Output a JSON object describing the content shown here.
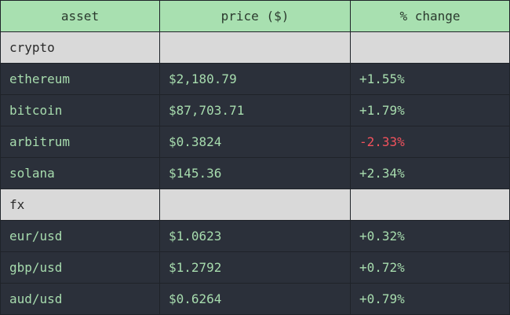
{
  "table": {
    "headers": [
      "asset",
      "price ($)",
      "% change"
    ],
    "groups": [
      {
        "name": "crypto",
        "rows": [
          {
            "asset": "ethereum",
            "price": "$2,180.79",
            "change": "+1.55%"
          },
          {
            "asset": "bitcoin",
            "price": "$87,703.71",
            "change": "+1.79%"
          },
          {
            "asset": "arbitrum",
            "price": "$0.3824",
            "change": "-2.33%"
          },
          {
            "asset": "solana",
            "price": "$145.36",
            "change": "+2.34%"
          }
        ]
      },
      {
        "name": "fx",
        "rows": [
          {
            "asset": "eur/usd",
            "price": "$1.0623",
            "change": "+0.32%"
          },
          {
            "asset": "gbp/usd",
            "price": "$1.2792",
            "change": "+0.72%"
          },
          {
            "asset": "aud/usd",
            "price": "$0.6264",
            "change": "+0.79%"
          }
        ]
      }
    ]
  },
  "colors": {
    "header_bg": "#a8e0b0",
    "section_bg": "#d9d9d9",
    "row_bg": "#2b303a",
    "positive_text": "#a7dcae",
    "negative_text": "#f2525d"
  }
}
